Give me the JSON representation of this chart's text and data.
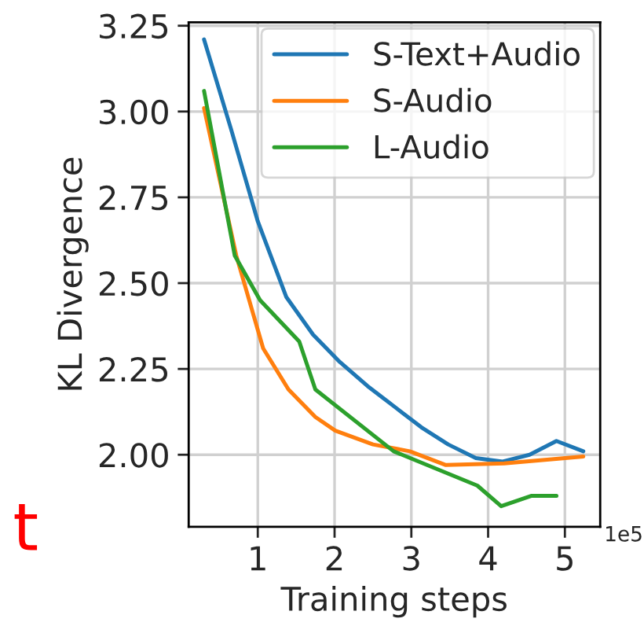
{
  "chart_data": {
    "type": "line",
    "xlabel": "Training steps",
    "ylabel": "KL Divergence",
    "xlim": [
      0.1,
      5.46
    ],
    "ylim": [
      1.79,
      3.26
    ],
    "xticks": [
      1,
      2,
      3,
      4,
      5
    ],
    "yticks": [
      {
        "value": 2.0,
        "label": "2.00"
      },
      {
        "value": 2.25,
        "label": "2.25"
      },
      {
        "value": 2.5,
        "label": "2.50"
      },
      {
        "value": 2.75,
        "label": "2.75"
      },
      {
        "value": 3.0,
        "label": "3.00"
      },
      {
        "value": 3.25,
        "label": "3.25"
      }
    ],
    "grid": true,
    "legend": "top right",
    "marker": "none",
    "line_style": "solid",
    "annotations": [
      "1e5",
      "t"
    ],
    "series": [
      {
        "name": "S-Text+Audio",
        "color": "#1f77b4",
        "x": [
          0.3,
          0.65,
          1.0,
          1.37,
          1.72,
          2.07,
          2.43,
          2.78,
          3.13,
          3.48,
          3.84,
          4.19,
          4.54,
          4.89,
          5.24
        ],
        "values": [
          3.21,
          2.95,
          2.68,
          2.46,
          2.35,
          2.27,
          2.2,
          2.14,
          2.08,
          2.03,
          1.99,
          1.98,
          2.0,
          2.04,
          2.01
        ]
      },
      {
        "name": "S-Audio",
        "color": "#ff7f0e",
        "x": [
          0.3,
          0.72,
          1.07,
          1.4,
          1.75,
          2.01,
          2.5,
          2.98,
          3.45,
          4.21,
          5.24
        ],
        "values": [
          3.01,
          2.58,
          2.31,
          2.19,
          2.11,
          2.07,
          2.03,
          2.01,
          1.97,
          1.975,
          1.995
        ]
      },
      {
        "name": "L-Audio",
        "color": "#2ca02c",
        "x": [
          0.3,
          0.7,
          1.03,
          1.54,
          1.75,
          2.77,
          3.86,
          4.17,
          4.56,
          4.89
        ],
        "values": [
          3.06,
          2.58,
          2.45,
          2.33,
          2.19,
          2.01,
          1.91,
          1.85,
          1.88,
          1.88
        ]
      }
    ]
  }
}
